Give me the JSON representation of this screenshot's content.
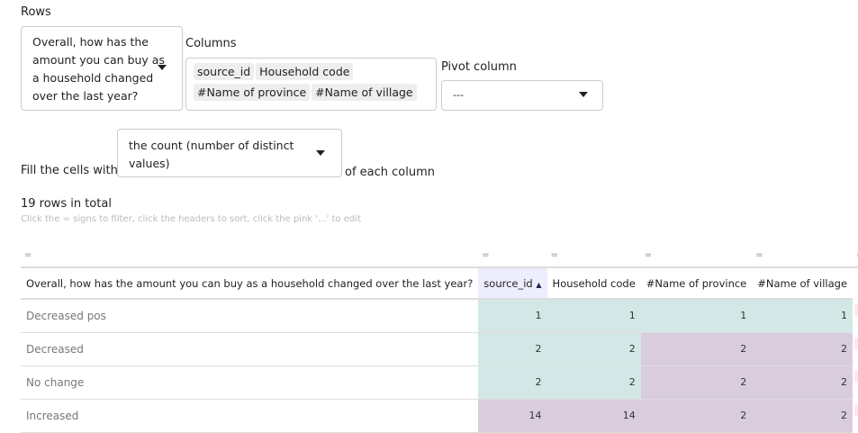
{
  "rows_label": "Rows",
  "rows_value": "Overall, how has the amount you can buy as a household changed over the last year?",
  "columns_label": "Columns",
  "columns_tags": [
    "source_id",
    "Household code",
    "#Name of province",
    "#Name of village"
  ],
  "pivot_label": "Pivot column",
  "pivot_value": "---",
  "fill_prefix": "Fill the cells with",
  "fill_value": "the count (number of distinct values)",
  "fill_suffix": "of each column",
  "total": "19 rows in total",
  "hint": "Click the = signs to filter, click the headers to sort, click the pink '...' to edit",
  "filter_sign": "=",
  "edit_label": "...",
  "colors": {
    "teal": "#d3e8e6",
    "purple": "#d9cddd"
  },
  "table": {
    "headers": [
      "Overall, how has the amount you can buy as a household changed over the last year?",
      "source_id",
      "Household code",
      "#Name of province",
      "#Name of village"
    ],
    "sort_icon": "sort-asc-icon",
    "rows": [
      {
        "label": "Decreased pos",
        "values": [
          "1",
          "1",
          "1",
          "1"
        ],
        "colors": [
          "teal",
          "teal",
          "teal",
          "teal"
        ]
      },
      {
        "label": "Decreased",
        "values": [
          "2",
          "2",
          "2",
          "2"
        ],
        "colors": [
          "teal",
          "teal",
          "purple",
          "purple"
        ]
      },
      {
        "label": "No change",
        "values": [
          "2",
          "2",
          "2",
          "2"
        ],
        "colors": [
          "teal",
          "teal",
          "purple",
          "purple"
        ]
      },
      {
        "label": "Increased",
        "values": [
          "14",
          "14",
          "2",
          "2"
        ],
        "colors": [
          "purple",
          "purple",
          "purple",
          "purple"
        ]
      }
    ]
  }
}
